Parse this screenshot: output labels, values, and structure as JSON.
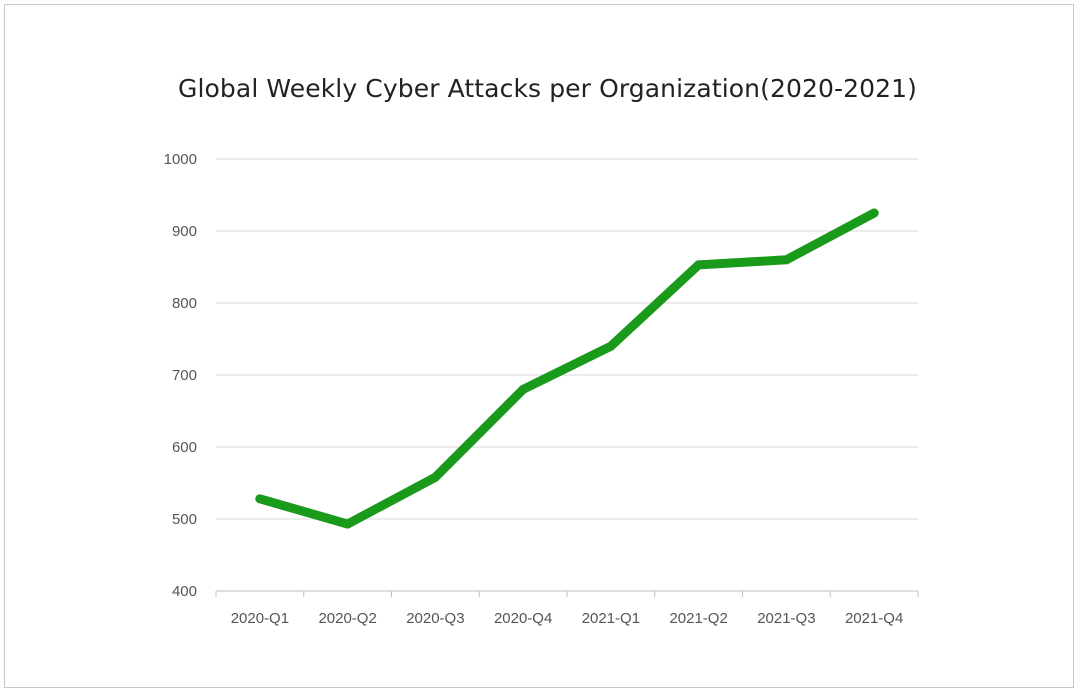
{
  "chart_data": {
    "type": "line",
    "title": "Global Weekly Cyber Attacks per Organization(2020-2021)",
    "xlabel": "",
    "ylabel": "",
    "categories": [
      "2020-Q1",
      "2020-Q2",
      "2020-Q3",
      "2020-Q4",
      "2021-Q1",
      "2021-Q2",
      "2021-Q3",
      "2021-Q4"
    ],
    "series": [
      {
        "values": [
          528,
          493,
          558,
          680,
          740,
          853,
          860,
          925
        ],
        "color": "#1a9a1a"
      }
    ],
    "ylim": [
      400,
      1000
    ],
    "yticks": [
      400,
      500,
      600,
      700,
      800,
      900,
      1000
    ],
    "grid": true,
    "legend": "none"
  }
}
